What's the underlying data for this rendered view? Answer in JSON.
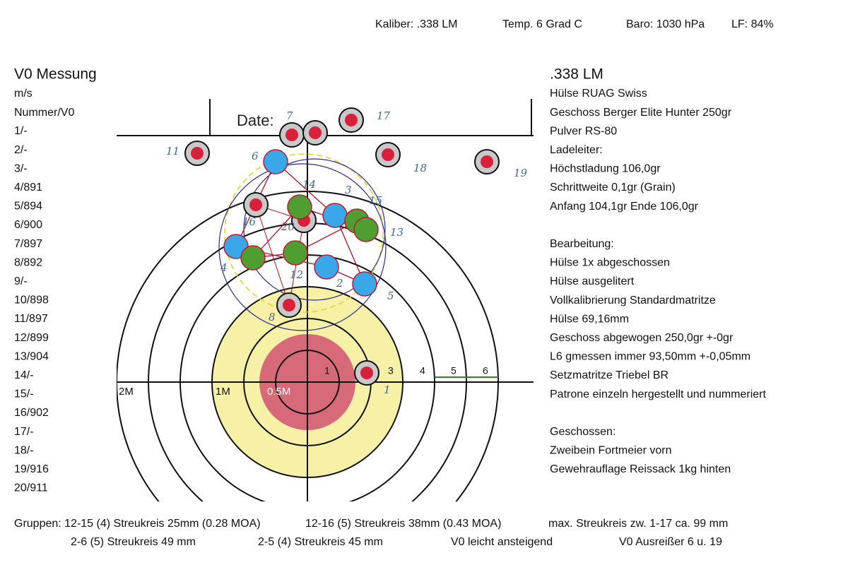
{
  "header": {
    "items": [
      "Kaliber: .338 LM",
      "Temp. 6 Grad C",
      "Baro: 1030 hPa",
      "LF: 84%"
    ]
  },
  "left": {
    "title": "V0 Messung",
    "unit": "m/s",
    "column_header": "Nummer/V0",
    "rows": [
      "1/-",
      "2/-",
      "3/-",
      "4/891",
      "5/894",
      "6/900",
      "7/897",
      "8/892",
      "9/-",
      "10/898",
      "11/897",
      "12/899",
      "13/904",
      "14/-",
      "15/-",
      "16/902",
      "17/-",
      "18/-",
      "19/916",
      "20/911"
    ]
  },
  "right": {
    "title": ".338 LM",
    "sections": [
      {
        "lines": [
          "Hülse RUAG Swiss",
          "Geschoss Berger Elite Hunter 250gr",
          "Pulver RS-80",
          "Ladeleiter:",
          "Höchstladung 106,0gr",
          "Schrittweite 0,1gr (Grain)",
          "Anfang 104,1gr Ende 106,0gr"
        ]
      },
      {
        "lines": [
          "Bearbeitung:",
          "Hülse 1x abgeschossen",
          "Hülse ausgelitert",
          "Vollkalibrierung Standardmatritze",
          "Hülse 69,16mm",
          "Geschoss abgewogen 250,0gr +-0gr",
          "L6 gmessen immer 93,50mm +-0,05mm",
          "Setzmatritze Triebel BR",
          "Patrone einzeln hergestellt und nummeriert"
        ]
      },
      {
        "lines": [
          "Geschossen:",
          "Zweibein Fortmeier vorn",
          "Gewehrauflage Reissack 1kg hinten"
        ]
      }
    ]
  },
  "target": {
    "date_label": "Date:",
    "ring_numbers": [
      "1",
      "3",
      "4",
      "5",
      "6"
    ],
    "distance_labels": [
      "2M",
      "1M",
      "0.5M"
    ],
    "shot_labels": [
      "7",
      "17",
      "11",
      "6",
      "18",
      "19",
      "14",
      "3",
      "15",
      "16",
      "20",
      "13",
      "4",
      "12",
      "2",
      "5",
      "8",
      "1"
    ]
  },
  "footer": {
    "lines": [
      [
        "Gruppen: 12-15 (4) Streukreis 25mm (0.28 MOA)",
        "12-16 (5) Streukreis 38mm (0.43 MOA)",
        "max. Streukreis zw. 1-17 ca. 99 mm"
      ],
      [
        "2-6 (5) Streukreis 49 mm",
        "2-5 (4) Streukreis 45 mm",
        "V0 leicht ansteigend",
        "V0 Ausreißer 6 u. 19"
      ]
    ]
  }
}
